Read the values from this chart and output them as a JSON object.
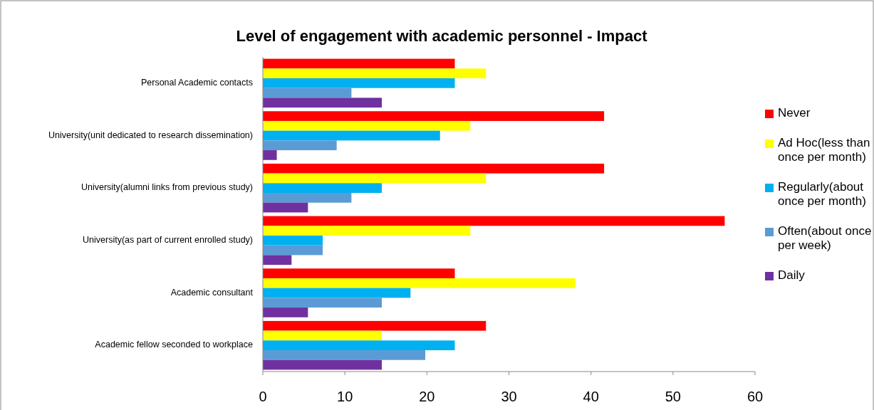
{
  "chart_data": {
    "type": "bar",
    "orientation": "horizontal",
    "title": "Level of engagement with academic personnel - Impact",
    "categories": [
      "Personal Academic contacts",
      "University(unit dedicated to research dissemination)",
      "University(alumni links from previous study)",
      "University(as part of current enrolled study)",
      "Academic consultant",
      "Academic fellow seconded to workplace"
    ],
    "series": [
      {
        "name": "Never",
        "color": "#ff0000",
        "values": [
          23.4,
          41.6,
          41.6,
          56.3,
          23.4,
          27.2
        ]
      },
      {
        "name": "Ad Hoc(less than once per month)",
        "color": "#ffff00",
        "values": [
          27.2,
          25.3,
          27.2,
          25.3,
          38.1,
          14.5
        ]
      },
      {
        "name": "Regularly(about once per month)",
        "color": "#00b0f0",
        "values": [
          23.4,
          21.6,
          14.5,
          7.3,
          18.0,
          23.4
        ]
      },
      {
        "name": "Often(about once per week)",
        "color": "#5b9bd5",
        "values": [
          10.8,
          9.0,
          10.8,
          7.3,
          14.5,
          19.8
        ]
      },
      {
        "name": "Daily",
        "color": "#7030a0",
        "values": [
          14.5,
          1.7,
          5.5,
          3.5,
          5.5,
          14.5
        ]
      }
    ],
    "xlim": [
      0,
      60
    ],
    "xticks": [
      0,
      10,
      20,
      30,
      40,
      50,
      60
    ],
    "grid": false,
    "legend": "right"
  }
}
